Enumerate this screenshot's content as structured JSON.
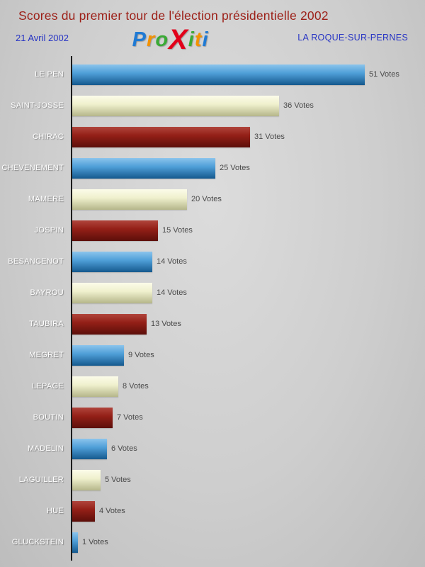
{
  "header": {
    "title": "Scores du premier tour de l'élection présidentielle 2002",
    "date": "21 Avril 2002",
    "location": "LA ROQUE-SUR-PERNES",
    "logo_letters": [
      {
        "char": "P",
        "color": "#1f7ad4"
      },
      {
        "char": "r",
        "color": "#f39200"
      },
      {
        "char": "o",
        "color": "#3aaa35"
      },
      {
        "char": "X",
        "color": "#e2001a",
        "large": true
      },
      {
        "char": "i",
        "color": "#3aaa35"
      },
      {
        "char": "t",
        "color": "#f39200"
      },
      {
        "char": "i",
        "color": "#1f7ad4"
      }
    ]
  },
  "chart_data": {
    "type": "bar",
    "orientation": "horizontal",
    "title": "Scores du premier tour de l'élection présidentielle 2002",
    "categories": [
      "LE PEN",
      "SAINT-JOSSE",
      "CHIRAC",
      "CHEVENEMENT",
      "MAMERE",
      "JOSPIN",
      "BESANCENOT",
      "BAYROU",
      "TAUBIRA",
      "MEGRET",
      "LEPAGE",
      "BOUTIN",
      "MADELIN",
      "LAGUILLER",
      "HUE",
      "GLUCKSTEIN"
    ],
    "values": [
      51,
      36,
      31,
      25,
      20,
      15,
      14,
      14,
      13,
      9,
      8,
      7,
      6,
      5,
      4,
      1
    ],
    "value_suffix": " Votes",
    "xlim": [
      0,
      52
    ],
    "grid": false,
    "legend": false,
    "bar_colors_cycle": [
      "blue",
      "cream",
      "darkred"
    ],
    "colors": {
      "blue": {
        "top": "#8cc4ec",
        "mid": "#4f9fd8",
        "bottom": "#15598e"
      },
      "cream": {
        "top": "#fcfce9",
        "mid": "#eff0cd",
        "bottom": "#b5b68a"
      },
      "darkred": {
        "top": "#b0453c",
        "mid": "#931f17",
        "bottom": "#5c0f0a"
      }
    }
  }
}
